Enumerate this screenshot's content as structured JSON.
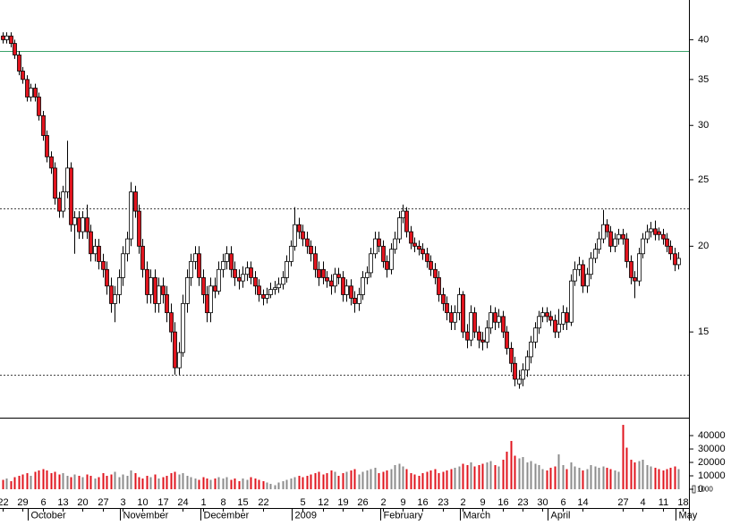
{
  "chart_data": {
    "type": "candlestick",
    "log_scale": true,
    "ylim": [
      11.25,
      45.7
    ],
    "yticks": [
      15,
      20,
      25,
      30,
      35,
      40
    ],
    "reference_lines": [
      {
        "value": 38.5,
        "color": "#3aa36a",
        "style": "solid"
      },
      {
        "value": 22.7,
        "color": "#444444",
        "style": "dashed"
      },
      {
        "value": 13.0,
        "color": "#444444",
        "style": "dashed"
      }
    ],
    "up_color": "#ffffff",
    "down_color": "#e0141e",
    "volume_up_color": "#8c8c8c",
    "volume_down_color": "#e0141e",
    "volume_ylim": [
      -14000,
      52700
    ],
    "volume_yticks": [
      0,
      10000,
      20000,
      30000,
      40000
    ],
    "volume_unit_label": "1000",
    "categories": [
      "22",
      null,
      null,
      null,
      null,
      "29",
      null,
      null,
      null,
      null,
      "6",
      null,
      null,
      null,
      null,
      "13",
      null,
      null,
      null,
      null,
      "20",
      null,
      null,
      null,
      null,
      "27",
      null,
      null,
      null,
      null,
      "3",
      null,
      null,
      null,
      null,
      "10",
      null,
      null,
      null,
      null,
      "17",
      null,
      null,
      null,
      null,
      "24",
      null,
      null,
      null,
      null,
      "1",
      null,
      null,
      null,
      null,
      "8",
      null,
      null,
      null,
      null,
      "15",
      null,
      null,
      null,
      null,
      "22",
      null,
      null,
      null,
      null,
      null,
      null,
      null,
      null,
      null,
      "5",
      null,
      null,
      null,
      null,
      "12",
      null,
      null,
      null,
      null,
      "19",
      null,
      null,
      null,
      null,
      "26",
      null,
      null,
      null,
      null,
      "2",
      null,
      null,
      null,
      null,
      "9",
      null,
      null,
      null,
      null,
      "16",
      null,
      null,
      null,
      null,
      "23",
      null,
      null,
      null,
      null,
      "2",
      null,
      null,
      null,
      null,
      "9",
      null,
      null,
      null,
      null,
      "16",
      null,
      null,
      null,
      null,
      "23",
      null,
      null,
      null,
      null,
      "30",
      null,
      null,
      null,
      null,
      "6",
      null,
      null,
      null,
      null,
      "14",
      null,
      null,
      null,
      null,
      null,
      null,
      null,
      null,
      null,
      "27",
      null,
      null,
      null,
      null,
      "4",
      null,
      null,
      null,
      null,
      "11",
      null,
      null,
      null,
      null,
      "18"
    ],
    "month_labels": [
      null,
      null,
      null,
      null,
      null,
      null,
      null,
      "October",
      null,
      null,
      null,
      null,
      null,
      null,
      null,
      null,
      null,
      null,
      null,
      null,
      null,
      null,
      null,
      null,
      null,
      null,
      null,
      null,
      null,
      null,
      "November",
      null,
      null,
      null,
      null,
      null,
      null,
      null,
      null,
      null,
      null,
      null,
      null,
      null,
      null,
      null,
      null,
      null,
      null,
      null,
      "December",
      null,
      null,
      null,
      null,
      null,
      null,
      null,
      null,
      null,
      null,
      null,
      null,
      null,
      null,
      null,
      null,
      null,
      null,
      null,
      null,
      null,
      null,
      "2009",
      null,
      null,
      null,
      null,
      null,
      null,
      null,
      null,
      null,
      null,
      null,
      null,
      null,
      null,
      null,
      null,
      null,
      null,
      null,
      null,
      null,
      "February",
      null,
      null,
      null,
      null,
      null,
      null,
      null,
      null,
      null,
      null,
      null,
      null,
      null,
      null,
      null,
      null,
      null,
      null,
      null,
      "March",
      null,
      null,
      null,
      null,
      null,
      null,
      null,
      null,
      null,
      null,
      null,
      null,
      null,
      null,
      null,
      null,
      null,
      null,
      null,
      null,
      null,
      "April",
      null,
      null,
      null,
      null,
      null,
      null,
      null,
      null,
      null,
      null,
      null,
      null,
      null,
      null,
      null,
      null,
      null,
      null,
      null,
      null,
      null,
      null,
      null,
      null,
      null,
      null,
      null,
      null,
      null,
      null,
      null,
      "May",
      null,
      null,
      null,
      null,
      null,
      null,
      null,
      null,
      null,
      null,
      null
    ],
    "open": [
      40.5,
      40.0,
      40.5,
      39.5,
      38.0,
      36.0,
      35.0,
      33.0,
      34.0,
      33.0,
      31.0,
      29.0,
      27.0,
      26.0,
      23.5,
      22.5,
      24.0,
      26.0,
      21.5,
      22.0,
      21.0,
      22.0,
      21.0,
      19.5,
      20.0,
      19.0,
      18.5,
      17.5,
      16.5,
      17.0,
      18.0,
      19.5,
      20.5,
      24.0,
      22.5,
      20.0,
      18.5,
      17.0,
      18.0,
      16.5,
      17.5,
      17.0,
      16.0,
      15.0,
      13.3,
      14.0,
      16.5,
      18.0,
      19.0,
      19.5,
      18.0,
      17.0,
      16.0,
      17.5,
      17.2,
      18.5,
      19.0,
      19.5,
      18.5,
      18.0,
      17.8,
      18.2,
      18.6,
      18.0,
      17.5,
      17.0,
      16.8,
      17.0,
      17.3,
      17.4,
      17.6,
      18.0,
      19.0,
      20.0,
      21.5,
      21.0,
      20.5,
      20.0,
      19.5,
      18.5,
      18.5,
      18.0,
      17.8,
      17.5,
      18.2,
      18.0,
      17.0,
      17.5,
      16.8,
      16.5,
      17.0,
      18.0,
      18.3,
      19.5,
      20.5,
      20.0,
      19.0,
      18.5,
      19.8,
      20.5,
      22.0,
      22.5,
      21.0,
      20.2,
      20.0,
      19.8,
      19.5,
      19.0,
      18.5,
      18.0,
      17.0,
      16.5,
      16.0,
      15.5,
      16.0,
      17.0,
      15.0,
      14.6,
      16.0,
      15.0,
      14.6,
      14.5,
      15.2,
      16.0,
      15.5,
      15.8,
      15.0,
      14.2,
      13.5,
      12.6,
      12.8,
      13.2,
      13.8,
      14.5,
      15.2,
      15.8,
      16.0,
      15.8,
      15.6,
      15.0,
      15.4,
      16.0,
      15.5,
      17.8,
      18.5,
      18.8,
      17.5,
      18.2,
      19.2,
      19.8,
      20.5,
      21.5,
      21.0,
      20.0,
      20.5,
      20.8,
      20.5,
      19.0,
      18.0,
      17.8,
      19.5,
      20.5,
      21.0,
      21.2,
      21.0,
      20.8,
      20.5,
      20.0,
      19.5,
      18.8,
      null
    ],
    "high": [
      41.0,
      41.0,
      41.0,
      40.0,
      38.5,
      36.5,
      35.5,
      34.5,
      34.5,
      33.5,
      31.5,
      29.5,
      27.5,
      26.5,
      24.0,
      24.5,
      28.5,
      26.5,
      22.5,
      22.5,
      22.5,
      23.0,
      21.5,
      20.5,
      20.5,
      19.5,
      19.0,
      18.0,
      17.5,
      18.5,
      20.0,
      21.0,
      24.8,
      24.5,
      23.0,
      20.5,
      19.0,
      18.5,
      18.5,
      18.0,
      18.0,
      17.5,
      16.5,
      15.5,
      14.5,
      17.0,
      18.5,
      19.5,
      20.0,
      20.0,
      18.5,
      17.5,
      18.0,
      18.0,
      19.0,
      19.5,
      20.0,
      20.0,
      19.0,
      18.5,
      18.7,
      19.0,
      19.0,
      18.4,
      17.9,
      17.3,
      17.4,
      17.7,
      17.8,
      18.0,
      18.4,
      19.4,
      20.4,
      22.8,
      22.0,
      21.5,
      21.0,
      20.4,
      20.0,
      19.0,
      19.0,
      18.4,
      18.2,
      18.6,
      18.6,
      18.4,
      17.9,
      17.9,
      17.2,
      17.4,
      18.4,
      18.7,
      19.9,
      21.0,
      21.0,
      20.4,
      19.4,
      20.2,
      21.0,
      22.5,
      23.0,
      22.8,
      21.4,
      20.6,
      20.4,
      20.2,
      19.9,
      19.4,
      18.9,
      18.4,
      17.4,
      16.9,
      16.4,
      16.4,
      17.4,
      17.2,
      15.4,
      16.4,
      16.3,
      15.3,
      15.0,
      15.6,
      16.4,
      16.3,
      16.2,
      16.1,
      15.3,
      14.5,
      13.8,
      13.2,
      13.5,
      14.1,
      14.8,
      15.5,
      16.1,
      16.3,
      16.3,
      16.1,
      15.9,
      16.2,
      16.4,
      16.3,
      18.2,
      19.0,
      19.3,
      19.1,
      18.6,
      19.6,
      20.2,
      21.0,
      22.6,
      21.9,
      21.4,
      20.9,
      21.2,
      21.2,
      20.9,
      19.4,
      18.4,
      19.9,
      20.9,
      21.5,
      21.7,
      21.8,
      21.3,
      21.2,
      20.9,
      20.4,
      19.9,
      19.6,
      null
    ],
    "low": [
      39.5,
      39.5,
      39.0,
      37.5,
      35.5,
      34.5,
      32.5,
      32.5,
      32.5,
      30.5,
      28.5,
      26.5,
      25.5,
      23.0,
      22.0,
      22.0,
      23.5,
      21.0,
      19.5,
      20.5,
      20.5,
      20.5,
      19.0,
      19.0,
      18.5,
      18.0,
      17.0,
      16.0,
      15.5,
      16.5,
      17.5,
      19.0,
      20.0,
      22.0,
      19.5,
      18.0,
      16.5,
      16.5,
      16.0,
      16.0,
      16.5,
      15.5,
      14.5,
      13.0,
      13.0,
      13.8,
      16.0,
      17.5,
      18.5,
      17.5,
      16.5,
      15.5,
      15.5,
      16.8,
      17.0,
      18.0,
      18.5,
      18.0,
      17.5,
      17.3,
      17.4,
      17.8,
      17.6,
      17.0,
      16.6,
      16.4,
      16.5,
      16.8,
      17.0,
      17.1,
      17.3,
      17.7,
      18.7,
      19.7,
      20.5,
      20.0,
      19.5,
      19.0,
      18.0,
      17.5,
      17.6,
      17.4,
      17.0,
      17.1,
      17.6,
      16.6,
      16.6,
      16.4,
      16.0,
      16.1,
      16.7,
      17.6,
      18.0,
      19.2,
      19.6,
      18.6,
      18.0,
      18.2,
      19.5,
      20.2,
      21.6,
      20.6,
      19.8,
      19.6,
      19.4,
      19.1,
      18.6,
      18.1,
      17.6,
      16.6,
      16.1,
      15.6,
      15.1,
      15.1,
      15.6,
      14.7,
      14.2,
      14.3,
      14.7,
      14.2,
      14.1,
      14.2,
      14.9,
      15.1,
      15.2,
      14.7,
      13.9,
      13.1,
      12.5,
      12.4,
      12.5,
      12.9,
      13.5,
      14.2,
      14.9,
      15.5,
      15.5,
      15.3,
      14.7,
      14.7,
      15.1,
      15.1,
      15.3,
      17.5,
      18.1,
      17.1,
      17.1,
      17.9,
      18.9,
      19.5,
      20.2,
      20.6,
      19.6,
      19.6,
      20.1,
      20.1,
      18.6,
      17.6,
      16.8,
      17.5,
      19.2,
      20.2,
      20.6,
      20.4,
      20.4,
      20.1,
      19.6,
      19.1,
      18.4,
      18.5,
      null
    ],
    "close": [
      40.0,
      40.5,
      39.5,
      38.0,
      36.0,
      35.0,
      33.0,
      34.0,
      33.0,
      31.0,
      29.0,
      27.0,
      26.0,
      23.5,
      22.5,
      24.0,
      26.0,
      21.5,
      22.0,
      21.0,
      22.0,
      21.0,
      19.5,
      20.0,
      19.0,
      18.5,
      17.5,
      16.5,
      17.0,
      18.0,
      19.5,
      20.5,
      24.0,
      22.5,
      20.0,
      18.5,
      17.0,
      18.0,
      16.5,
      17.5,
      17.0,
      16.0,
      15.0,
      13.3,
      14.0,
      16.5,
      18.0,
      19.0,
      19.5,
      18.0,
      17.0,
      16.0,
      17.5,
      17.2,
      18.5,
      19.0,
      19.5,
      18.5,
      18.0,
      17.8,
      18.2,
      18.6,
      18.0,
      17.5,
      17.0,
      16.8,
      17.0,
      17.3,
      17.4,
      17.6,
      18.0,
      19.0,
      20.0,
      21.5,
      21.0,
      20.5,
      20.0,
      19.5,
      18.5,
      18.0,
      18.0,
      17.8,
      17.5,
      18.2,
      18.0,
      17.0,
      17.5,
      16.8,
      16.5,
      17.0,
      18.0,
      18.3,
      19.5,
      20.5,
      20.0,
      19.0,
      18.5,
      19.8,
      20.5,
      22.0,
      22.5,
      21.0,
      20.2,
      20.0,
      19.8,
      19.5,
      19.0,
      18.5,
      18.0,
      17.0,
      16.5,
      16.0,
      15.5,
      16.0,
      17.0,
      15.0,
      14.6,
      16.0,
      15.0,
      14.6,
      14.5,
      15.2,
      16.0,
      15.5,
      15.8,
      15.0,
      14.2,
      13.5,
      12.8,
      12.8,
      13.2,
      13.8,
      14.5,
      15.2,
      15.8,
      16.0,
      15.8,
      15.6,
      15.0,
      15.4,
      16.0,
      15.5,
      17.8,
      18.5,
      18.8,
      17.5,
      18.2,
      19.2,
      19.8,
      20.5,
      21.5,
      21.0,
      20.0,
      20.5,
      20.8,
      20.5,
      19.0,
      18.0,
      17.8,
      19.5,
      20.5,
      21.0,
      21.2,
      20.8,
      20.8,
      20.5,
      20.0,
      19.5,
      18.8,
      19.2,
      null
    ],
    "volume": [
      7000,
      8000,
      6000,
      9000,
      10000,
      11000,
      12000,
      10000,
      13000,
      14000,
      15000,
      14000,
      12000,
      13000,
      11000,
      12000,
      10000,
      9000,
      11000,
      10000,
      9000,
      11000,
      10000,
      8000,
      9000,
      12000,
      10000,
      11000,
      13000,
      9000,
      11000,
      10000,
      14000,
      12000,
      9000,
      8000,
      10000,
      9000,
      11000,
      8000,
      9000,
      10000,
      12000,
      13000,
      11000,
      12000,
      10000,
      9000,
      8000,
      7000,
      9000,
      8000,
      7000,
      8000,
      9000,
      8000,
      9000,
      7000,
      8000,
      6000,
      8000,
      7000,
      9000,
      8000,
      7000,
      6000,
      5000,
      4000,
      3000,
      5000,
      6000,
      7000,
      8000,
      9000,
      10000,
      9000,
      10000,
      11000,
      12000,
      13000,
      11000,
      12000,
      14000,
      13000,
      10000,
      12000,
      13000,
      14000,
      15000,
      11000,
      13000,
      14000,
      15000,
      16000,
      12000,
      13000,
      14000,
      15000,
      18000,
      19000,
      17000,
      15000,
      12000,
      11000,
      10000,
      12000,
      13000,
      14000,
      15000,
      12000,
      13000,
      14000,
      15000,
      16000,
      17000,
      19000,
      18000,
      20000,
      17000,
      18000,
      19000,
      20000,
      21000,
      18000,
      17000,
      22000,
      28000,
      36000,
      25000,
      23000,
      24000,
      20000,
      21000,
      19000,
      18000,
      15000,
      14000,
      16000,
      17000,
      26000,
      18000,
      15000,
      20000,
      17000,
      16000,
      14000,
      15000,
      18000,
      17000,
      16000,
      17000,
      16000,
      15000,
      14000,
      13000,
      48000,
      31000,
      22000,
      20000,
      21000,
      22000,
      18000,
      17000,
      16000,
      15000,
      14000,
      15000,
      16000,
      17000,
      15000,
      null
    ]
  }
}
